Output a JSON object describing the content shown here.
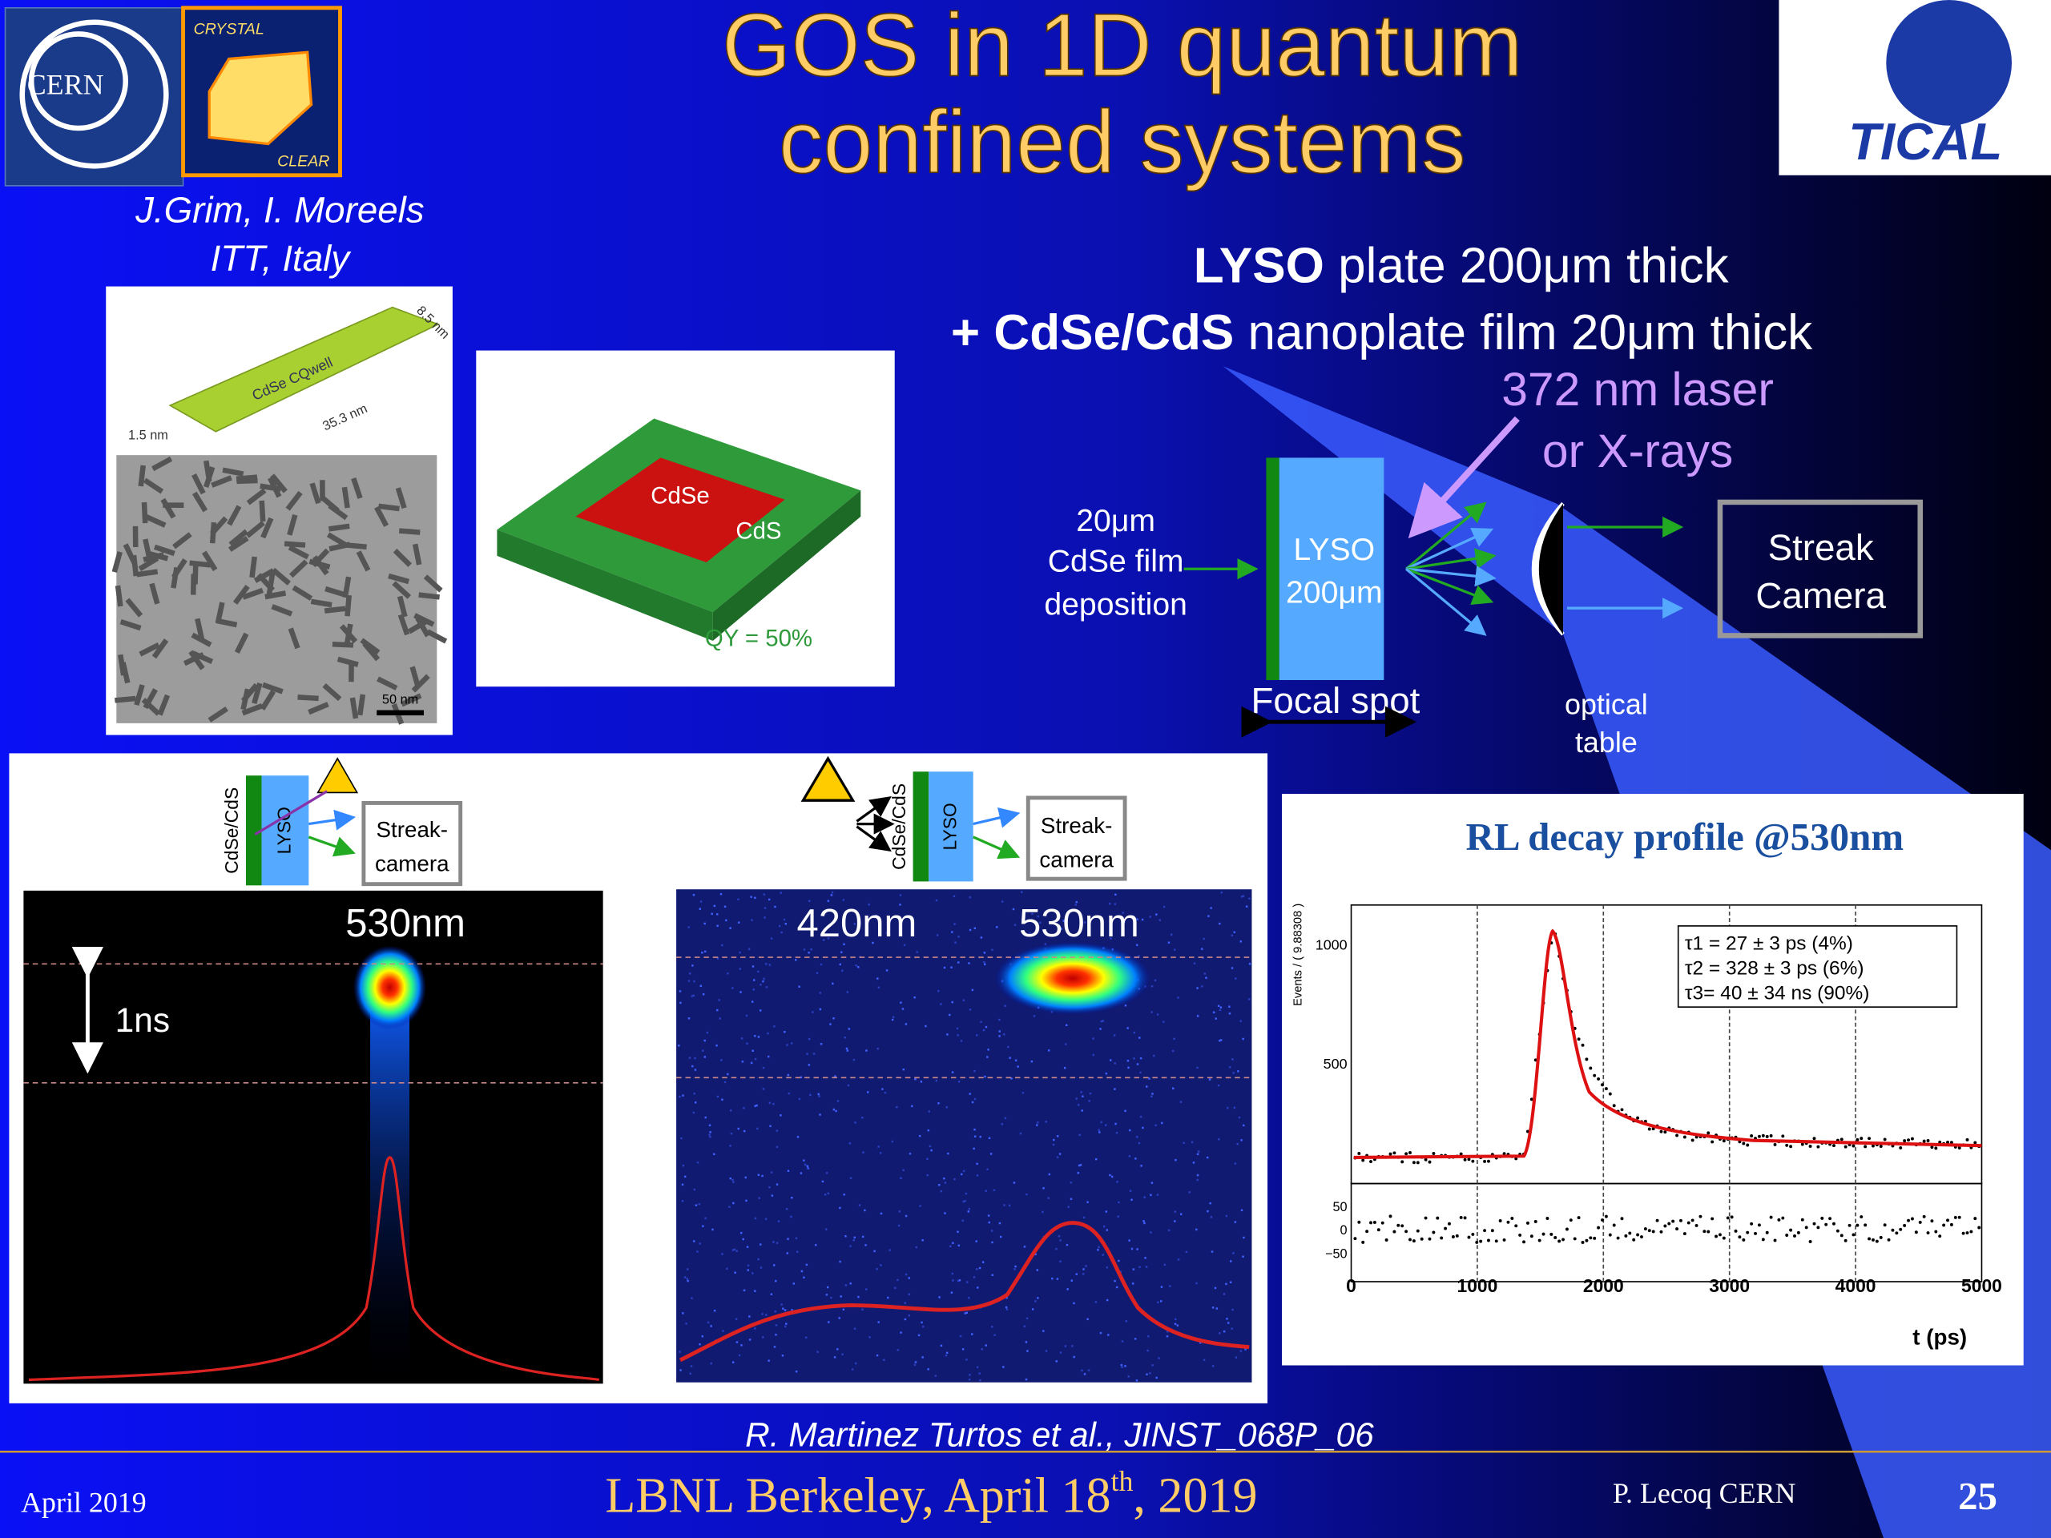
{
  "header": {
    "title": [
      "GOS in 1D quantum",
      "confined systems"
    ],
    "logo_cern": "CERN",
    "logo_crystal": [
      "CRYSTAL",
      "CLEAR"
    ],
    "logo_tical": "TICAL"
  },
  "authors": [
    "J.Grim, I. Moreels",
    "ITT, Italy"
  ],
  "figure_nanoplate": {
    "label": "CdSe CQwell",
    "width": "8.5 nm",
    "length": "35.3 nm",
    "thickness": "1.5 nm",
    "scale": "50 nm"
  },
  "figure_coreshell": {
    "core": "CdSe",
    "shell": "CdS",
    "qy": "QY = 50%"
  },
  "setup": {
    "line1": [
      "LYSO",
      " plate 200μm thick"
    ],
    "line2": [
      "+ CdSe/CdS",
      " nanoplate  film  20μm thick"
    ],
    "source": [
      "372 nm laser",
      "or X-rays"
    ],
    "film": [
      "20μm",
      "CdSe film",
      "deposition"
    ],
    "crystal": [
      "LYSO",
      "200μm"
    ],
    "focal": "Focal spot",
    "optical": [
      "optical",
      "table"
    ],
    "camera": [
      "Streak",
      "Camera"
    ]
  },
  "streak_left": {
    "film": "CdSe/CdS",
    "crystal": "LYSO",
    "camera": [
      "Streak-",
      "camera"
    ],
    "peak": "530nm",
    "scale": "1ns"
  },
  "streak_right": {
    "film": "CdSe/CdS",
    "crystal": "LYSO",
    "camera": [
      "Streak-",
      "camera"
    ],
    "peaks": [
      "420nm",
      "530nm"
    ]
  },
  "decay_plot": {
    "title": "RL decay profile @530nm",
    "ylabel": "Events / ( 9.88308 )",
    "yticks": [
      "1000",
      "500"
    ],
    "residual_ticks": [
      "50",
      "0",
      "−50"
    ],
    "xticks": [
      "0",
      "1000",
      "2000",
      "3000",
      "4000",
      "5000"
    ],
    "xlabel": "t (ps)",
    "legend": [
      "τ1 = 27 ± 3 ps (4%)",
      "τ2 = 328 ± 3 ps (6%)",
      "τ3= 40 ± 34 ns (90%)"
    ]
  },
  "citation": "R. Martinez Turtos et al., JINST_068P_06",
  "footer": {
    "date": "April 2019",
    "event": [
      "LBNL Berkeley, April 18",
      "th",
      ", 2019"
    ],
    "author": "P. Lecoq  CERN",
    "page": "25"
  }
}
